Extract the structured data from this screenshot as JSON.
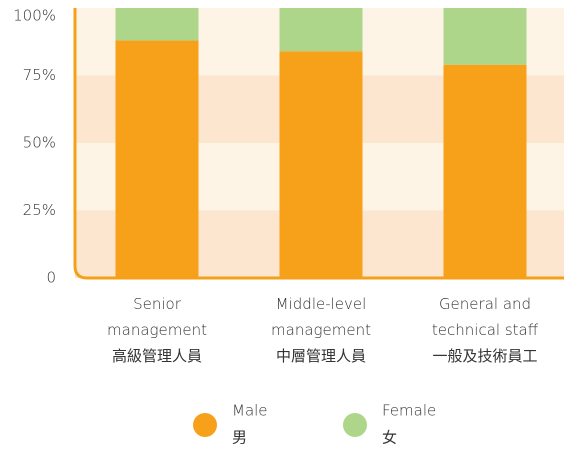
{
  "chart_data": {
    "type": "stacked_bar",
    "categories": [
      [
        "Senior",
        "management",
        "高級管理人員"
      ],
      [
        "Middle-level",
        "management",
        "中層管理人員"
      ],
      [
        "General and",
        "technical staff",
        "一般及技術員工"
      ]
    ],
    "series": [
      {
        "name": [
          "Male",
          "男"
        ],
        "color": "#f7a11a",
        "values": [
          88,
          84,
          79
        ]
      },
      {
        "name": [
          "Female",
          "女"
        ],
        "color": "#aed68b",
        "values": [
          12,
          16,
          21
        ]
      }
    ],
    "ylim": [
      0,
      100
    ],
    "yticks": [
      0,
      {
        "value": 25,
        "label": "25%"
      },
      {
        "value": 50,
        "label": "50%"
      },
      {
        "value": 75,
        "label": "75%"
      },
      {
        "value": 100,
        "label": "100%"
      }
    ],
    "band_colors": [
      "#fce6cf",
      "#fdf4e6"
    ],
    "axis_color": "#f5a01a"
  }
}
